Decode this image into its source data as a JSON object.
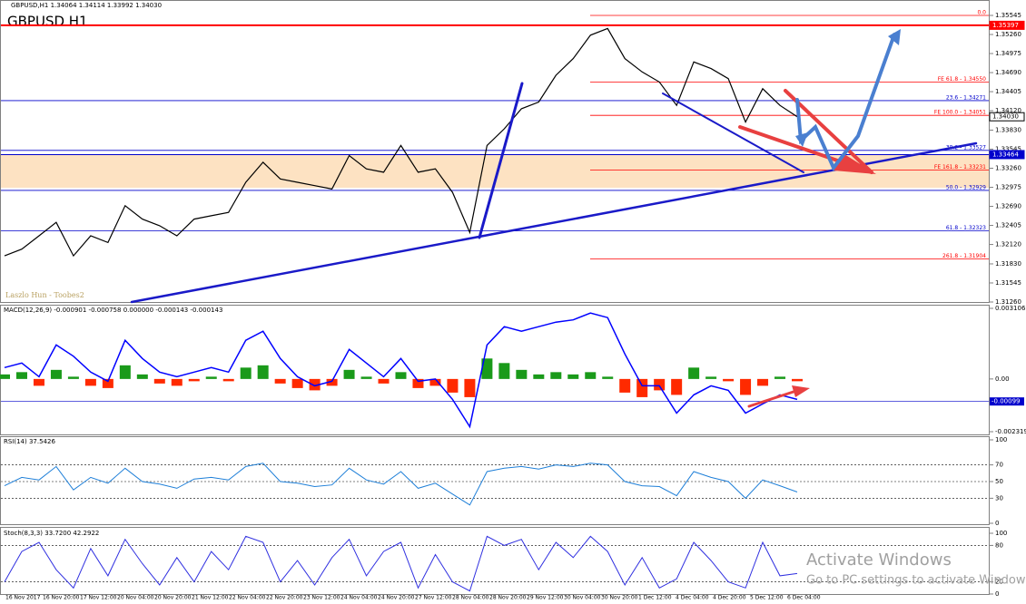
{
  "header": {
    "symbol_info": "GBPUSD,H1  1.34064 1.34114 1.33992 1.34030",
    "big_label": "GBPUSD   H1",
    "watermark": "Laszlo Hun - Toobes2"
  },
  "main": {
    "ylim": [
      1.3126,
      1.35545
    ],
    "yticks": [
      1.35545,
      {
        "value": 1.3526,
        "label": "1.35260"
      },
      1.34975,
      {
        "value": 1.3469,
        "label": "1.34690"
      },
      1.34405,
      {
        "value": 1.3412,
        "label": "1.34120"
      },
      {
        "value": 1.3383,
        "label": "1.33830"
      },
      1.33545,
      {
        "value": 1.3326,
        "label": "1.33260"
      },
      1.32975,
      {
        "value": 1.3269,
        "label": "1.32690"
      },
      1.32405,
      {
        "value": 1.3212,
        "label": "1.32120"
      },
      {
        "value": 1.3183,
        "label": "1.31830"
      },
      1.31545,
      {
        "value": 1.3126,
        "label": "1.31260"
      }
    ],
    "levels": [
      {
        "label": "0.0",
        "price": 1.35545,
        "color": "#ff0000"
      },
      {
        "label": "FE 61.8 - 1.34550",
        "price": 1.3455,
        "color": "#ff0000"
      },
      {
        "label": "23.6 - 1.34271",
        "price": 1.34271,
        "color": "#0000cc"
      },
      {
        "label": "FE 100.0 - 1.34051",
        "price": 1.34051,
        "color": "#ff0000"
      },
      {
        "label": "38.2 - 1.33527",
        "price": 1.33527,
        "color": "#0000cc"
      },
      {
        "label": "FE 161.8 - 1.33231",
        "price": 1.33231,
        "color": "#ff0000"
      },
      {
        "label": "50.0 - 1.32929",
        "price": 1.32929,
        "color": "#0000cc"
      },
      {
        "label": "61.8 - 1.32323",
        "price": 1.32323,
        "color": "#0000cc"
      },
      {
        "label": "261.8 - 1.31904",
        "price": 1.31904,
        "color": "#ff0000"
      }
    ],
    "price_boxes": [
      {
        "label": "1.35397",
        "value": 1.35397,
        "color": "#ff0000"
      },
      {
        "label": "1.33464",
        "value": 1.33464,
        "color": "#0000cc"
      },
      {
        "label": "1.34030",
        "value": 1.3403,
        "color": "#000000"
      }
    ],
    "close": [
      1.3195,
      1.3205,
      1.3225,
      1.3245,
      1.3195,
      1.3225,
      1.3215,
      1.327,
      1.325,
      1.324,
      1.3225,
      1.325,
      1.3255,
      1.326,
      1.3305,
      1.3335,
      1.331,
      1.3305,
      1.33,
      1.3295,
      1.3345,
      1.3325,
      1.332,
      1.336,
      1.332,
      1.3325,
      1.329,
      1.323,
      1.336,
      1.3385,
      1.3415,
      1.3425,
      1.3465,
      1.349,
      1.3525,
      1.3535,
      1.349,
      1.347,
      1.3455,
      1.342,
      1.3485,
      1.3475,
      1.346,
      1.3395,
      1.3445,
      1.342,
      1.3403
    ]
  },
  "macd": {
    "title": "MACD(12,26,9) -0.000901 -0.000758 0.000000 -0.000143 -0.000143",
    "ylim": [
      -0.002319,
      0.003106
    ],
    "yticks": [
      0.003106,
      {
        "value": 0,
        "label": "0.00"
      },
      -0.002319
    ],
    "level": -0.00099,
    "line": [
      0.0005,
      0.0007,
      0.0001,
      0.0015,
      0.001,
      0.0003,
      -0.0001,
      0.0017,
      0.0009,
      0.0003,
      0.0001,
      0.0003,
      0.0005,
      0.0003,
      0.0017,
      0.0021,
      0.0009,
      0.0001,
      -0.0003,
      -0.0001,
      0.0013,
      0.0007,
      0.0001,
      0.0009,
      -0.0001,
      0,
      -0.0009,
      -0.0021,
      0.0015,
      0.0023,
      0.0021,
      0.0023,
      0.0025,
      0.0026,
      0.0029,
      0.0027,
      0.0011,
      -0.0003,
      -0.0003,
      -0.0015,
      -0.0007,
      -0.0003,
      -0.0005,
      -0.0015,
      -0.0011,
      -0.0007,
      -0.0009
    ],
    "histogram": [
      0.0002,
      0.0003,
      -0.0003,
      0.0004,
      0.0001,
      -0.0003,
      -0.0004,
      0.0006,
      0.0002,
      -0.0002,
      -0.0003,
      -0.0001,
      0.0001,
      -0.0001,
      0.0005,
      0.0006,
      -0.0002,
      -0.0004,
      -0.0005,
      -0.0003,
      0.0004,
      0.0001,
      -0.0002,
      0.0003,
      -0.0004,
      -0.0003,
      -0.0006,
      -0.0008,
      0.0009,
      0.0007,
      0.0004,
      0.0002,
      0.0003,
      0.0002,
      0.0003,
      0.0001,
      -0.0006,
      -0.0008,
      -0.0005,
      -0.0007,
      0.0005,
      0.0001,
      -0.0001,
      -0.0007,
      -0.0003,
      0.0001,
      -0.0001
    ]
  },
  "rsi": {
    "title": "RSI(14) 37.5426",
    "ylim": [
      0,
      100
    ],
    "yticks": [
      100,
      70,
      50,
      30,
      0
    ],
    "values": [
      45,
      55,
      52,
      68,
      40,
      55,
      48,
      66,
      50,
      47,
      42,
      53,
      55,
      52,
      68,
      72,
      50,
      48,
      44,
      46,
      66,
      52,
      47,
      62,
      42,
      48,
      35,
      22,
      62,
      66,
      68,
      65,
      70,
      68,
      72,
      70,
      50,
      45,
      44,
      33,
      62,
      55,
      50,
      30,
      52,
      45,
      37.5
    ]
  },
  "stoch": {
    "title": "Stoch(8,3,3) 33.7200 42.2922",
    "ylim": [
      0,
      100
    ],
    "yticks": [
      100,
      80,
      20,
      0
    ],
    "values": [
      20,
      70,
      85,
      40,
      10,
      75,
      30,
      90,
      50,
      15,
      60,
      20,
      70,
      40,
      95,
      85,
      20,
      55,
      15,
      60,
      90,
      30,
      70,
      85,
      10,
      65,
      20,
      5,
      95,
      80,
      90,
      40,
      85,
      60,
      95,
      70,
      15,
      60,
      10,
      25,
      85,
      55,
      20,
      10,
      85,
      30,
      33.7
    ]
  },
  "time_labels": [
    "16 Nov 2017",
    "16 Nov 20:00",
    "17 Nov 12:00",
    "20 Nov 04:00",
    "20 Nov 20:00",
    "21 Nov 12:00",
    "22 Nov 04:00",
    "22 Nov 20:00",
    "23 Nov 12:00",
    "24 Nov 04:00",
    "24 Nov 20:00",
    "27 Nov 12:00",
    "28 Nov 04:00",
    "28 Nov 20:00",
    "29 Nov 12:00",
    "30 Nov 04:00",
    "30 Nov 20:00",
    "1 Dec 12:00",
    "4 Dec 04:00",
    "4 Dec 20:00",
    "5 Dec 12:00",
    "6 Dec 04:00"
  ],
  "windows": {
    "title": "Activate Windows",
    "subtitle": "Go to PC settings to activate Windows."
  }
}
